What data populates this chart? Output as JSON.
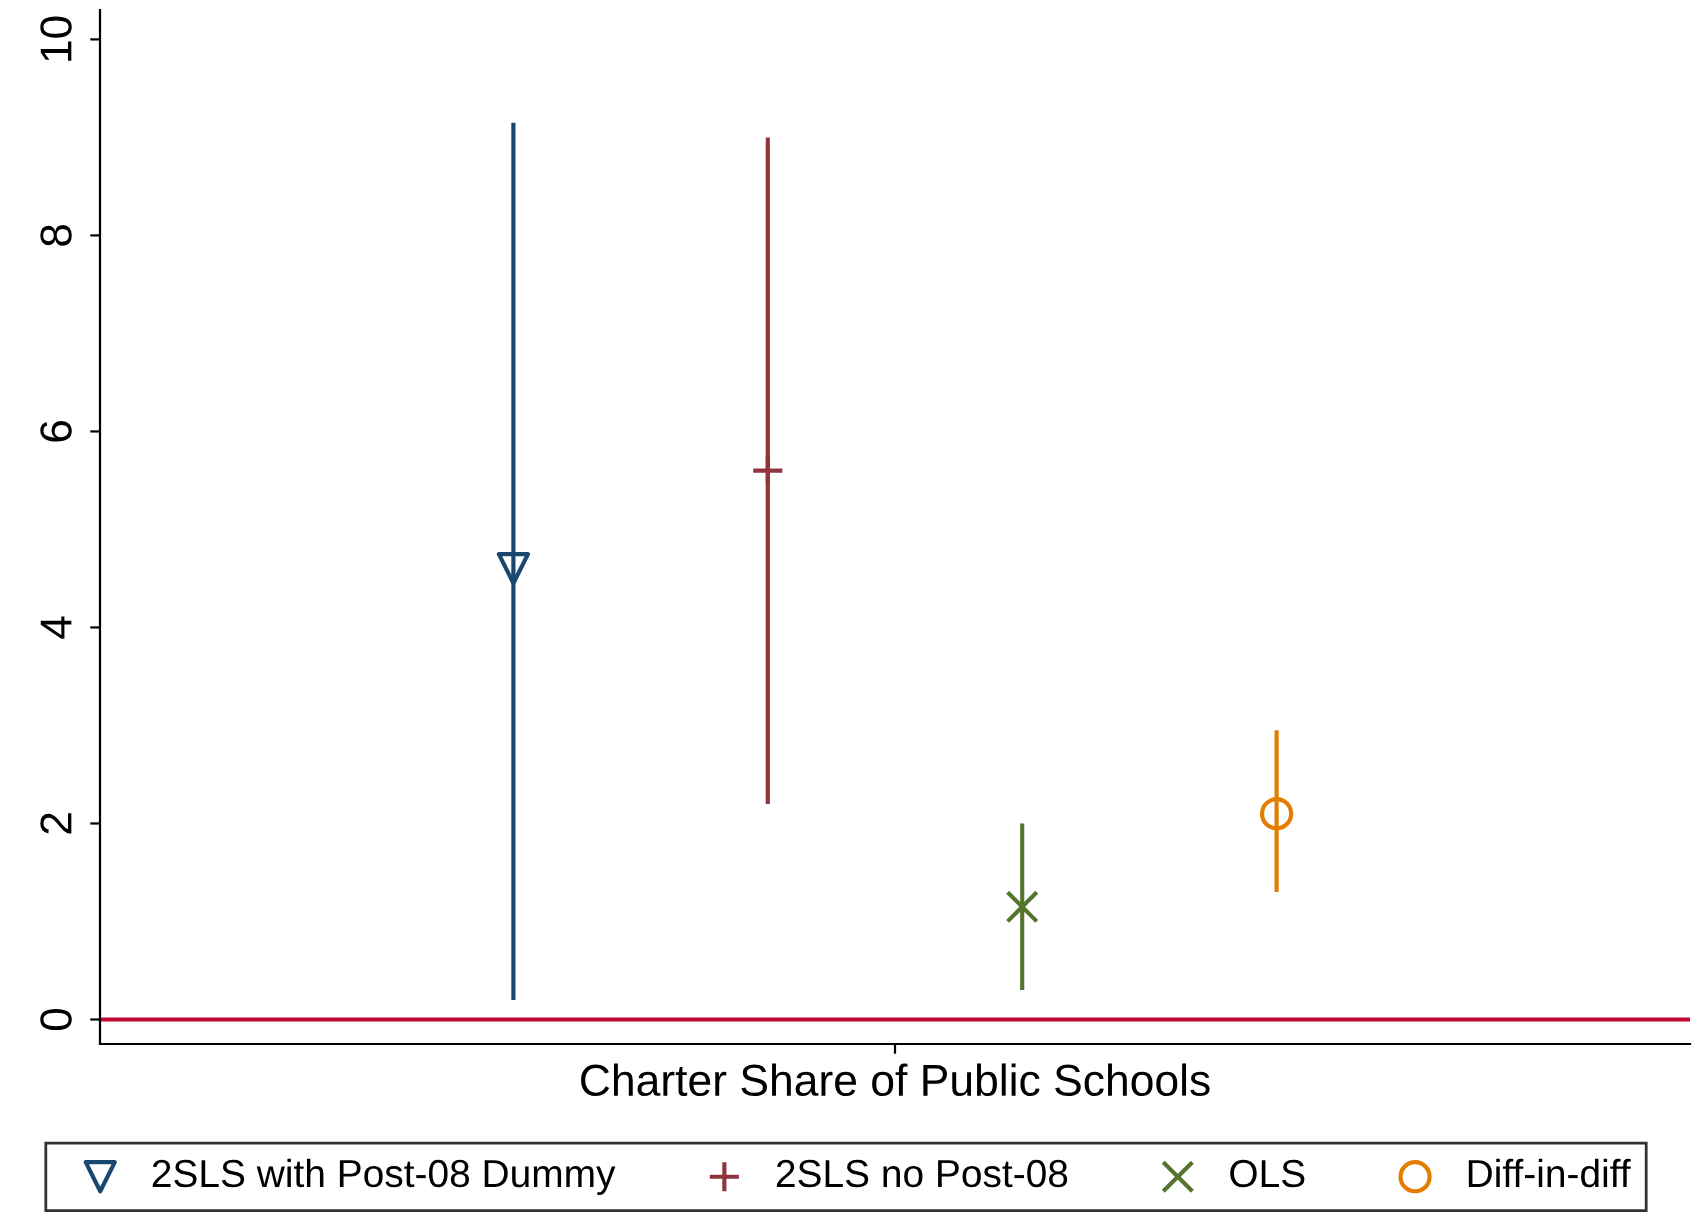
{
  "chart_data": {
    "type": "scatter",
    "categories": [
      "Charter Share of Public Schools"
    ],
    "series": [
      {
        "name": "2SLS with Post-08 Dummy",
        "color": "#1a476f",
        "marker": "triangle",
        "values": [
          4.6
        ],
        "errors": [
          [
            0.2,
            9.15
          ]
        ]
      },
      {
        "name": "2SLS no Post-08",
        "color": "#90353b",
        "marker": "plus",
        "values": [
          5.6
        ],
        "errors": [
          [
            2.2,
            9.0
          ]
        ]
      },
      {
        "name": "OLS",
        "color": "#55752f",
        "marker": "cross",
        "values": [
          1.15
        ],
        "errors": [
          [
            0.3,
            2.0
          ]
        ]
      },
      {
        "name": "Diff-in-diff",
        "color": "#e37e00",
        "marker": "circle",
        "values": [
          2.1
        ],
        "errors": [
          [
            1.3,
            2.95
          ]
        ]
      }
    ],
    "ylim": [
      -0.25,
      10.3
    ],
    "yticks": [
      0,
      2,
      4,
      6,
      8,
      10
    ],
    "ref_lines": [
      {
        "axis": "y",
        "value": 0,
        "color": "#c10534",
        "line_style": "solid"
      }
    ],
    "grid": false,
    "legend": "bottom"
  }
}
